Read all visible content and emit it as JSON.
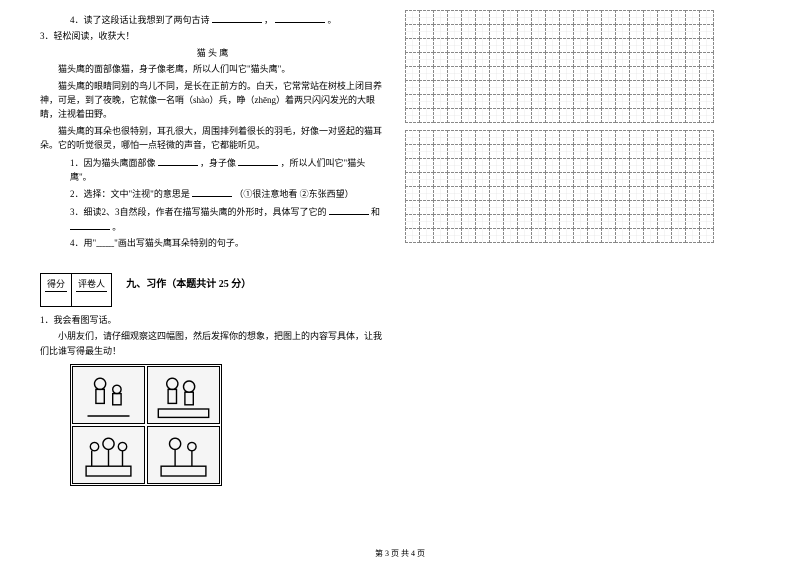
{
  "left": {
    "q4": "4．读了这段话让我想到了两句古诗",
    "q4_sep": "，",
    "q4_end": "。",
    "s3_head": "3．轻松阅读，收获大！",
    "title": "猫 头 鹰",
    "p1": "猫头鹰的面部像猫，身子像老鹰，所以人们叫它\"猫头鹰\"。",
    "p2": "猫头鹰的眼睛同别的鸟儿不同，是长在正前方的。白天，它常常站在树枝上闭目养神，可是，到了夜晚，它就像一名哨（shào）兵，睁（zhēng）着两只闪闪发光的大眼睛，注视着田野。",
    "p3": "猫头鹰的耳朵也很特别，耳孔很大，周围排列着很长的羽毛，好像一对竖起的猫耳朵。它的听觉很灵，哪怕一点轻微的声音，它都能听见。",
    "l1a": "1．因为猫头鹰面部像",
    "l1b": "，身子像",
    "l1c": "，所以人们叫它\"猫头鹰\"。",
    "l2a": "2．选择：文中\"注视\"的意思是",
    "l2b": "（①很注意地看 ②东张西望）",
    "l3a": "3．细读2、3自然段，作者在描写猫头鹰的外形时，具体写了它的",
    "l3b": "和",
    "l3c": "。",
    "l4": "4．用\"﹏﹏\"画出写猫头鹰耳朵特别的句子。",
    "score_left": "得分",
    "score_right": "评卷人",
    "section9": "九、习作（本题共计 25 分）",
    "ex1_head": "1．我会看图写话。",
    "ex1_body": "小朋友们，请仔细观察这四幅图，然后发挥你的想象，把图上的内容写具体，让我们比谁写得最生动！"
  },
  "grid": {
    "blocks": 2,
    "rows_per_block": 8,
    "cols": 22
  },
  "footer": "第 3 页 共 4 页"
}
